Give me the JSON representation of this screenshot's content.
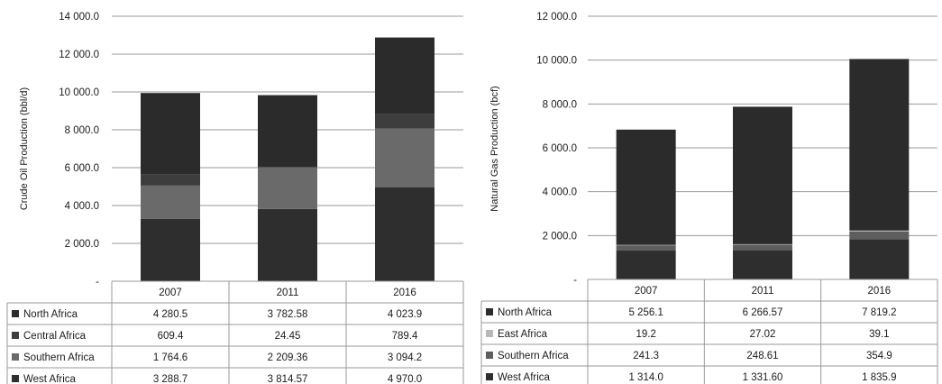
{
  "chart_data": [
    {
      "type": "bar",
      "stacked": true,
      "categories": [
        "2007",
        "2011",
        "2016"
      ],
      "ylabel": "Crude Oil Production (bbl/d)",
      "ylim": [
        0,
        14000
      ],
      "y_tick_labels": [
        "-",
        "2 000.0",
        "4 000.0",
        "6 000.0",
        "8 000.0",
        "10 000.0",
        "12 000.0",
        "14 000.0"
      ],
      "grid": true,
      "legend": "data-table-below",
      "series": [
        {
          "name": "West Africa",
          "values": [
            3288.7,
            3814.57,
            4970.0
          ],
          "labels": [
            "3 288.7",
            "3 814.57",
            "4 970.0"
          ],
          "color": "#2e2e2e"
        },
        {
          "name": "Southern Africa",
          "values": [
            1764.6,
            2209.36,
            3094.2
          ],
          "labels": [
            "1 764.6",
            "2 209.36",
            "3 094.2"
          ],
          "color": "#6a6a6a"
        },
        {
          "name": "Central Africa",
          "values": [
            609.4,
            24.45,
            789.4
          ],
          "labels": [
            "609.4",
            "24.45",
            "789.4"
          ],
          "color": "#3d3d3d"
        },
        {
          "name": "North Africa",
          "values": [
            4280.5,
            3782.58,
            4023.9
          ],
          "labels": [
            "4 280.5",
            "3 782.58",
            "4 023.9"
          ],
          "color": "#2b2b2b"
        }
      ]
    },
    {
      "type": "bar",
      "stacked": true,
      "categories": [
        "2007",
        "2011",
        "2016"
      ],
      "ylabel": "Natural Gas Production (bcf)",
      "ylim": [
        0,
        12000
      ],
      "y_tick_labels": [
        "-",
        "2 000.0",
        "4 000.0",
        "6 000.0",
        "8 000.0",
        "10 000.0",
        "12 000.0"
      ],
      "grid": true,
      "legend": "data-table-below",
      "series": [
        {
          "name": "West Africa",
          "values": [
            1314.0,
            1331.6,
            1835.9
          ],
          "labels": [
            "1 314.0",
            "1 331.60",
            "1 835.9"
          ],
          "color": "#2e2e2e"
        },
        {
          "name": "Southern Africa",
          "values": [
            241.3,
            248.61,
            354.9
          ],
          "labels": [
            "241.3",
            "248.61",
            "354.9"
          ],
          "color": "#5e5e5e"
        },
        {
          "name": "East Africa",
          "values": [
            19.2,
            27.02,
            39.1
          ],
          "labels": [
            "19.2",
            "27.02",
            "39.1"
          ],
          "color": "#b8b8b8"
        },
        {
          "name": "North Africa",
          "values": [
            5256.1,
            6266.57,
            7819.2
          ],
          "labels": [
            "5 256.1",
            "6 266.57",
            "7 819.2"
          ],
          "color": "#2b2b2b"
        }
      ]
    }
  ]
}
